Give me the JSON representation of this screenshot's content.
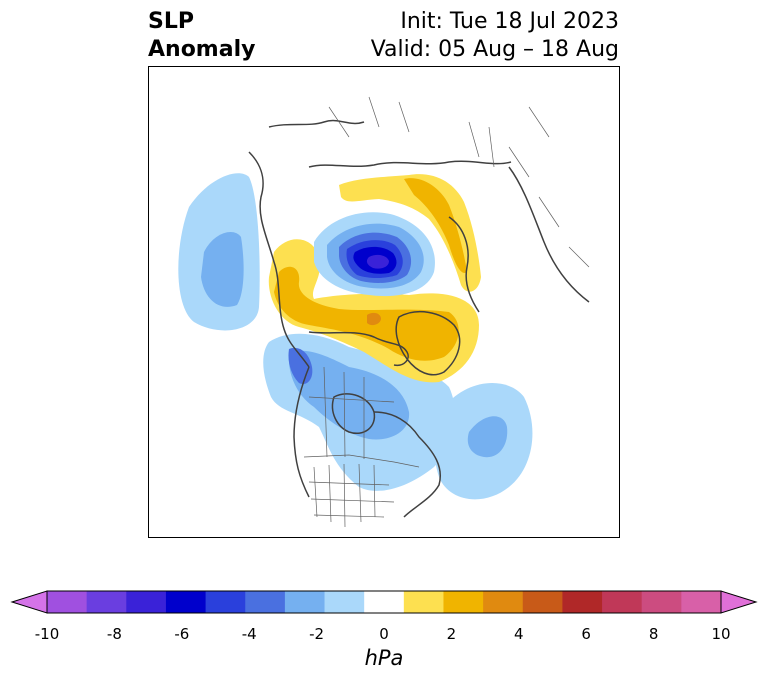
{
  "title": {
    "left_line1": "SLP",
    "left_line2": "Anomaly",
    "right_line1": "Init: Tue 18 Jul 2023",
    "right_line2": "Valid: 05 Aug – 18 Aug"
  },
  "map": {
    "projection": "polar-stereographic north-america",
    "features": [
      {
        "name": "arctic-low-anomaly",
        "min_value": -8,
        "color": "#2f2fc8"
      },
      {
        "name": "greenland-high-anomaly",
        "max_value": 3,
        "color": "#f0b400"
      },
      {
        "name": "siberia-high-anomaly",
        "max_value": 2,
        "color": "#fde050"
      },
      {
        "name": "north-pacific-low-anomaly",
        "min_value": -3,
        "color": "#75b0f0"
      },
      {
        "name": "north-america-low-anomaly",
        "min_value": -4,
        "color": "#4a70e0"
      },
      {
        "name": "north-atlantic-low-anomaly",
        "min_value": -3,
        "color": "#75b0f0"
      }
    ]
  },
  "colorbar": {
    "label": "hPa",
    "ticks": [
      "-10",
      "-8",
      "-6",
      "-4",
      "-2",
      "0",
      "2",
      "4",
      "6",
      "8",
      "10"
    ],
    "tick_values": [
      -10,
      -8,
      -6,
      -4,
      -2,
      0,
      2,
      4,
      6,
      8,
      10
    ],
    "extend": "both",
    "colors": [
      "#d473e8",
      "#a050e0",
      "#6a3ee0",
      "#3a22d8",
      "#0000cc",
      "#2a40dc",
      "#4a70e0",
      "#75b0f0",
      "#aad8fa",
      "#ffffff",
      "#fde050",
      "#f0b400",
      "#e08a10",
      "#c85a18",
      "#b02828",
      "#c03858",
      "#cc4c80",
      "#d860a8",
      "#e070d8"
    ]
  }
}
